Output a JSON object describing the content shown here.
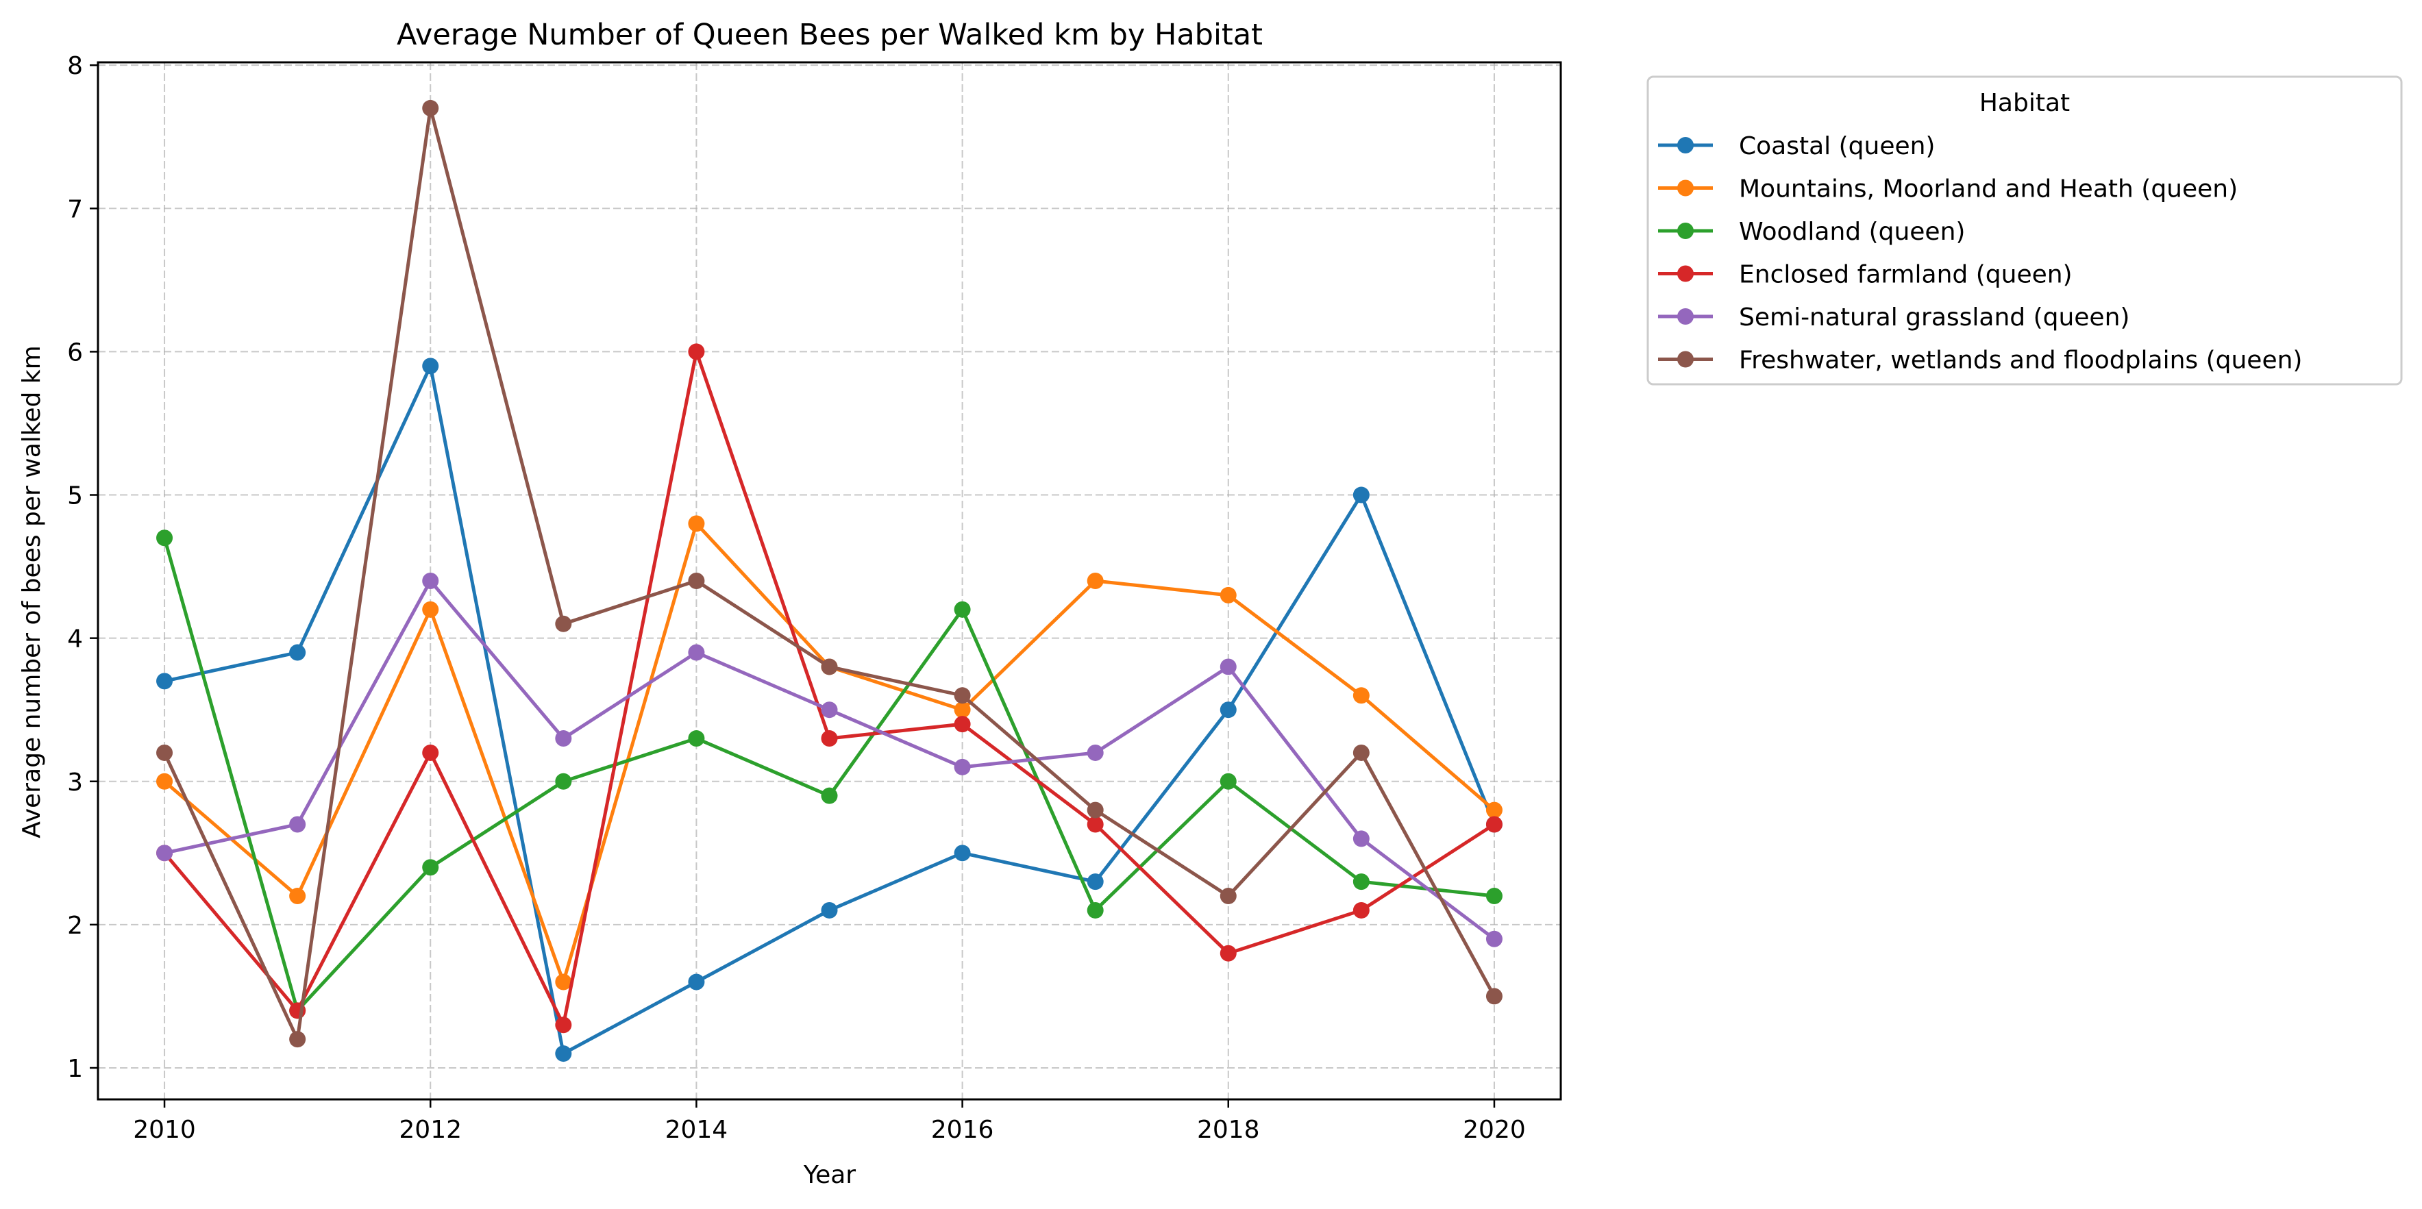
{
  "chart_data": {
    "type": "line",
    "title": "Average Number of Queen Bees per Walked km by Habitat",
    "xlabel": "Year",
    "ylabel": "Average number of bees per walked km",
    "x": [
      2010,
      2011,
      2012,
      2013,
      2014,
      2015,
      2016,
      2017,
      2018,
      2019,
      2020
    ],
    "xlim": [
      2009.5,
      2020.5
    ],
    "ylim": [
      0.78,
      8.02
    ],
    "xticks": [
      2010,
      2012,
      2014,
      2016,
      2018,
      2020
    ],
    "yticks": [
      1,
      2,
      3,
      4,
      5,
      6,
      7,
      8
    ],
    "grid": true,
    "legend": {
      "title": "Habitat",
      "placement": "outside-right-top"
    },
    "series": [
      {
        "name": "Coastal (queen)",
        "color": "#1f77b4",
        "values": [
          3.7,
          3.9,
          5.9,
          1.1,
          1.6,
          2.1,
          2.5,
          2.3,
          3.5,
          5.0,
          2.7
        ]
      },
      {
        "name": "Mountains, Moorland and Heath (queen)",
        "color": "#ff7f0e",
        "values": [
          3.0,
          2.2,
          4.2,
          1.6,
          4.8,
          3.8,
          3.5,
          4.4,
          4.3,
          3.6,
          2.8
        ]
      },
      {
        "name": "Woodland (queen)",
        "color": "#2ca02c",
        "values": [
          4.7,
          1.4,
          2.4,
          3.0,
          3.3,
          2.9,
          4.2,
          2.1,
          3.0,
          2.3,
          2.2
        ]
      },
      {
        "name": "Enclosed farmland (queen)",
        "color": "#d62728",
        "values": [
          2.5,
          1.4,
          3.2,
          1.3,
          6.0,
          3.3,
          3.4,
          2.7,
          1.8,
          2.1,
          2.7
        ]
      },
      {
        "name": "Semi-natural grassland (queen)",
        "color": "#9467bd",
        "values": [
          2.5,
          2.7,
          4.4,
          3.3,
          3.9,
          3.5,
          3.1,
          3.2,
          3.8,
          2.6,
          1.9
        ]
      },
      {
        "name": "Freshwater, wetlands and floodplains (queen)",
        "color": "#8c564b",
        "values": [
          3.2,
          1.2,
          7.7,
          4.1,
          4.4,
          3.8,
          3.6,
          2.8,
          2.2,
          3.2,
          1.5
        ]
      }
    ]
  }
}
